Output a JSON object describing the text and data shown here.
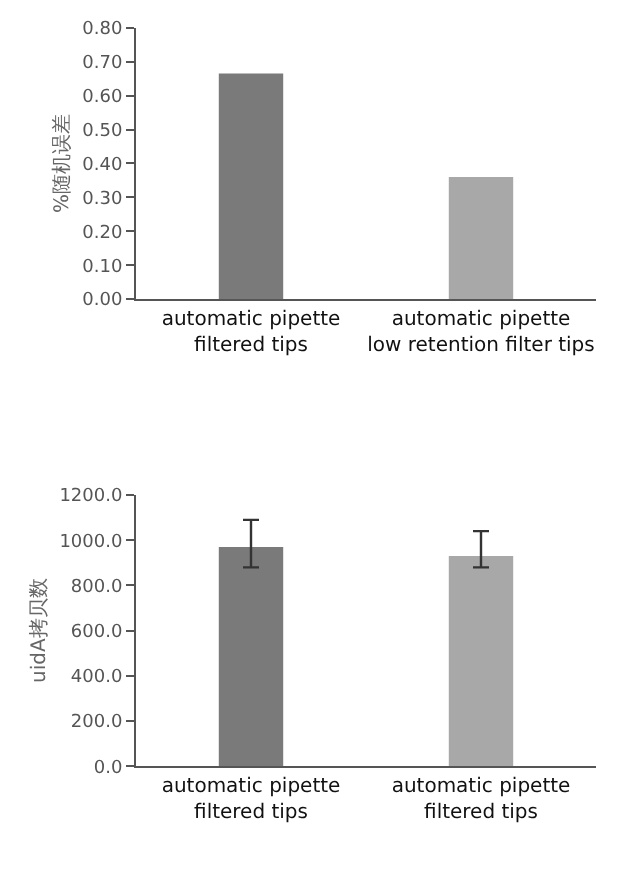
{
  "chart_data": [
    {
      "type": "bar",
      "ylabel": "%随机误差",
      "categories": [
        "automatic pipette\nfiltered tips",
        "automatic pipette\nlow retention filter tips"
      ],
      "values": [
        0.665,
        0.36
      ],
      "colors": [
        "#7a7a7b",
        "#a8a8a8"
      ],
      "ylim": [
        0,
        0.8
      ],
      "yticks": [
        {
          "value": 0,
          "label": "0.00"
        },
        {
          "value": 0.1,
          "label": "0.10"
        },
        {
          "value": 0.2,
          "label": "0.20"
        },
        {
          "value": 0.3,
          "label": "0.30"
        },
        {
          "value": 0.4,
          "label": "0.40"
        },
        {
          "value": 0.5,
          "label": "0.50"
        },
        {
          "value": 0.6,
          "label": "0.60"
        },
        {
          "value": 0.7,
          "label": "0.70"
        },
        {
          "value": 0.8,
          "label": "0.80"
        }
      ]
    },
    {
      "type": "bar",
      "ylabel": "uidA拷贝数",
      "categories": [
        "automatic pipette\nfiltered tips",
        "automatic pipette\nfiltered tips"
      ],
      "values": [
        970,
        930
      ],
      "errors": [
        [
          880,
          1090
        ],
        [
          880,
          1040
        ]
      ],
      "colors": [
        "#7a7a7b",
        "#a8a8a8"
      ],
      "ylim": [
        0,
        1200
      ],
      "yticks": [
        {
          "value": 0,
          "label": "0.0"
        },
        {
          "value": 200,
          "label": "200.0"
        },
        {
          "value": 400,
          "label": "400.0"
        },
        {
          "value": 600,
          "label": "600.0"
        },
        {
          "value": 800,
          "label": "800.0"
        },
        {
          "value": 1000,
          "label": "1000.0"
        },
        {
          "value": 1200,
          "label": "1200.0"
        }
      ]
    }
  ]
}
